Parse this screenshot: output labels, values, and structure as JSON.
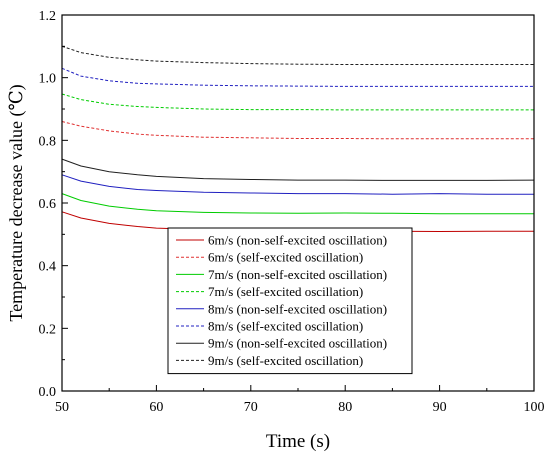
{
  "chart_data": {
    "type": "line",
    "title": "",
    "xlabel": "Time (s)",
    "ylabel": "Temperature decrease value (℃)",
    "xlim": [
      50,
      100
    ],
    "ylim": [
      0.0,
      1.2
    ],
    "xticks": [
      50,
      60,
      70,
      80,
      90,
      100
    ],
    "xtick_labels": [
      "50",
      "60",
      "70",
      "80",
      "90",
      "100"
    ],
    "yticks": [
      0.0,
      0.2,
      0.4,
      0.6,
      0.8,
      1.0,
      1.2
    ],
    "ytick_labels": [
      "0.0",
      "0.2",
      "0.4",
      "0.6",
      "0.8",
      "1.0",
      "1.2"
    ],
    "grid": false,
    "legend_position": "bottom-center",
    "series": [
      {
        "name": "6m/s (non-self-excited oscillation)",
        "color": "#c00000",
        "dash": "solid",
        "x": [
          50,
          52,
          55,
          58,
          60,
          65,
          70,
          75,
          80,
          85,
          90,
          95,
          100
        ],
        "y": [
          0.572,
          0.552,
          0.535,
          0.525,
          0.52,
          0.515,
          0.514,
          0.512,
          0.512,
          0.51,
          0.509,
          0.51,
          0.51
        ]
      },
      {
        "name": "6m/s (self-excited oscillation)",
        "color": "#e03030",
        "dash": "dashed",
        "x": [
          50,
          52,
          55,
          58,
          60,
          65,
          70,
          75,
          80,
          85,
          90,
          95,
          100
        ],
        "y": [
          0.86,
          0.845,
          0.83,
          0.82,
          0.816,
          0.81,
          0.808,
          0.806,
          0.806,
          0.805,
          0.805,
          0.805,
          0.805
        ]
      },
      {
        "name": "7m/s (non-self-excited oscillation)",
        "color": "#00cc00",
        "dash": "solid",
        "x": [
          50,
          52,
          55,
          58,
          60,
          65,
          70,
          75,
          80,
          85,
          90,
          95,
          100
        ],
        "y": [
          0.63,
          0.608,
          0.59,
          0.58,
          0.575,
          0.57,
          0.568,
          0.567,
          0.568,
          0.567,
          0.566,
          0.566,
          0.566
        ]
      },
      {
        "name": "7m/s (self-excited oscillation)",
        "color": "#00cc00",
        "dash": "dashed",
        "x": [
          50,
          52,
          55,
          58,
          60,
          65,
          70,
          75,
          80,
          85,
          90,
          95,
          100
        ],
        "y": [
          0.948,
          0.93,
          0.915,
          0.908,
          0.905,
          0.9,
          0.898,
          0.898,
          0.897,
          0.897,
          0.897,
          0.897,
          0.897
        ]
      },
      {
        "name": "8m/s (non-self-excited oscillation)",
        "color": "#2020c0",
        "dash": "solid",
        "x": [
          50,
          52,
          55,
          58,
          60,
          65,
          70,
          75,
          80,
          85,
          90,
          95,
          100
        ],
        "y": [
          0.69,
          0.67,
          0.653,
          0.643,
          0.64,
          0.634,
          0.632,
          0.63,
          0.63,
          0.628,
          0.63,
          0.628,
          0.628
        ]
      },
      {
        "name": "8m/s (self-excited oscillation)",
        "color": "#2020c0",
        "dash": "dashed",
        "x": [
          50,
          52,
          55,
          58,
          60,
          65,
          70,
          75,
          80,
          85,
          90,
          95,
          100
        ],
        "y": [
          1.03,
          1.005,
          0.99,
          0.982,
          0.98,
          0.976,
          0.974,
          0.973,
          0.972,
          0.972,
          0.972,
          0.972,
          0.972
        ]
      },
      {
        "name": "9m/s (non-self-excited oscillation)",
        "color": "#202020",
        "dash": "solid",
        "x": [
          50,
          52,
          55,
          58,
          60,
          65,
          70,
          75,
          80,
          85,
          90,
          95,
          100
        ],
        "y": [
          0.74,
          0.718,
          0.7,
          0.69,
          0.685,
          0.678,
          0.675,
          0.673,
          0.673,
          0.672,
          0.672,
          0.672,
          0.673
        ]
      },
      {
        "name": "9m/s (self-excited oscillation)",
        "color": "#202020",
        "dash": "dashed",
        "x": [
          50,
          52,
          55,
          58,
          60,
          65,
          70,
          75,
          80,
          85,
          90,
          95,
          100
        ],
        "y": [
          1.1,
          1.08,
          1.065,
          1.057,
          1.053,
          1.048,
          1.045,
          1.043,
          1.042,
          1.042,
          1.042,
          1.042,
          1.042
        ]
      }
    ]
  }
}
